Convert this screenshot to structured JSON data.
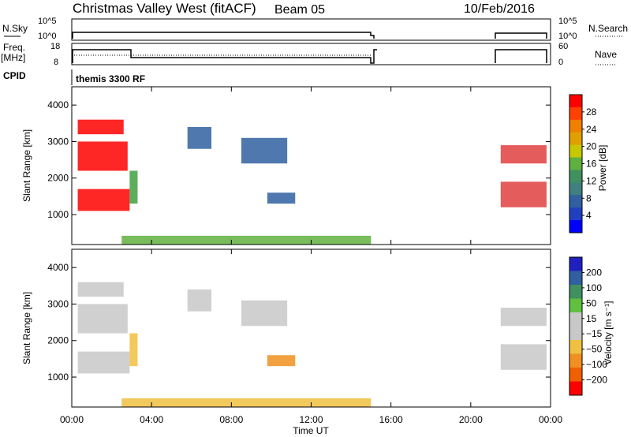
{
  "header": {
    "title": "Christmas Valley West (fitACF)",
    "beam": "Beam 05",
    "date": "10/Feb/2016"
  },
  "top_panels": {
    "nsky_label": "N.Sky",
    "nsearch_label": "N.Search",
    "nsky_ticks": [
      "10^5",
      "10^0"
    ],
    "nsearch_ticks": [
      "10^5",
      "10^0"
    ],
    "freq_label_line1": "Freq.",
    "freq_label_line2": "[MHz]",
    "freq_ticks": [
      "18",
      "8"
    ],
    "nave_ticks": [
      "60",
      "0"
    ],
    "nave_label": "Nave",
    "cpid_label": "CPID",
    "cpid_text": "themis 3300 RF"
  },
  "chart_data": [
    {
      "type": "heatmap",
      "name": "power-panel",
      "xlabel": "Time UT",
      "ylabel": "Slant Range [km]",
      "x_ticks": [
        "00:00",
        "04:00",
        "08:00",
        "12:00",
        "16:00",
        "20:00",
        "00:00"
      ],
      "xlim_hours": [
        0,
        24
      ],
      "y_ticks": [
        4000,
        3000,
        2000,
        1000
      ],
      "ylim_km": [
        180,
        4500
      ],
      "colorbar_label": "Power [dB]",
      "colorbar_ticks": [
        "28",
        "24",
        "20",
        "16",
        "12",
        "8",
        "4"
      ],
      "colorbar_colors": [
        "#ff0000",
        "#ff4000",
        "#f08000",
        "#e0a000",
        "#c8c800",
        "#60b040",
        "#409060",
        "#408080",
        "#3060a0",
        "#2040c0",
        "#0000ff"
      ],
      "regions": [
        {
          "t0": 0.3,
          "t1": 2.6,
          "r0": 3200,
          "r1": 3600,
          "color": "#ff0000"
        },
        {
          "t0": 0.3,
          "t1": 2.8,
          "r0": 2200,
          "r1": 3000,
          "color": "#ff0000"
        },
        {
          "t0": 0.3,
          "t1": 2.9,
          "r0": 1100,
          "r1": 1700,
          "color": "#ff0000"
        },
        {
          "t0": 2.9,
          "t1": 3.3,
          "r0": 1300,
          "r1": 2200,
          "color": "#40a040"
        },
        {
          "t0": 5.8,
          "t1": 7.0,
          "r0": 2800,
          "r1": 3400,
          "color": "#3060a0"
        },
        {
          "t0": 8.5,
          "t1": 10.8,
          "r0": 2400,
          "r1": 3100,
          "color": "#3060a0"
        },
        {
          "t0": 9.8,
          "t1": 11.2,
          "r0": 1300,
          "r1": 1600,
          "color": "#3060a0"
        },
        {
          "t0": 21.5,
          "t1": 23.8,
          "r0": 2400,
          "r1": 2900,
          "color": "#e04040"
        },
        {
          "t0": 21.5,
          "t1": 23.8,
          "r0": 1200,
          "r1": 1900,
          "color": "#e04040"
        },
        {
          "t0": 2.5,
          "t1": 15.0,
          "r0": 180,
          "r1": 420,
          "color": "#60b040"
        }
      ]
    },
    {
      "type": "heatmap",
      "name": "velocity-panel",
      "xlabel": "Time UT",
      "ylabel": "Slant Range [km]",
      "x_ticks": [
        "00:00",
        "04:00",
        "08:00",
        "12:00",
        "16:00",
        "20:00",
        "00:00"
      ],
      "xlim_hours": [
        0,
        24
      ],
      "y_ticks": [
        4000,
        3000,
        2000,
        1000
      ],
      "ylim_km": [
        180,
        4500
      ],
      "colorbar_label": "Velocity [m s⁻¹]",
      "colorbar_ticks": [
        "200",
        "100",
        "50",
        "15",
        "−15",
        "−50",
        "−100",
        "−200"
      ],
      "colorbar_colors": [
        "#2020c0",
        "#3060a0",
        "#409060",
        "#60c040",
        "#c8c8c8",
        "#c8c8c8",
        "#f0c040",
        "#f09020",
        "#f06000",
        "#ff0000"
      ],
      "regions": [
        {
          "t0": 0.3,
          "t1": 2.6,
          "r0": 3200,
          "r1": 3600,
          "color": "#c8c8c8"
        },
        {
          "t0": 0.3,
          "t1": 2.8,
          "r0": 2200,
          "r1": 3000,
          "color": "#c8c8c8"
        },
        {
          "t0": 0.3,
          "t1": 2.9,
          "r0": 1100,
          "r1": 1700,
          "color": "#c8c8c8"
        },
        {
          "t0": 2.9,
          "t1": 3.3,
          "r0": 1300,
          "r1": 2200,
          "color": "#f0c040"
        },
        {
          "t0": 5.8,
          "t1": 7.0,
          "r0": 2800,
          "r1": 3400,
          "color": "#c8c8c8"
        },
        {
          "t0": 8.5,
          "t1": 10.8,
          "r0": 2400,
          "r1": 3100,
          "color": "#c8c8c8"
        },
        {
          "t0": 9.8,
          "t1": 11.2,
          "r0": 1300,
          "r1": 1600,
          "color": "#f09020"
        },
        {
          "t0": 21.5,
          "t1": 23.8,
          "r0": 2400,
          "r1": 2900,
          "color": "#c8c8c8"
        },
        {
          "t0": 21.5,
          "t1": 23.8,
          "r0": 1200,
          "r1": 1900,
          "color": "#c8c8c8"
        },
        {
          "t0": 2.5,
          "t1": 15.0,
          "r0": 180,
          "r1": 420,
          "color": "#f0c040"
        }
      ]
    }
  ]
}
